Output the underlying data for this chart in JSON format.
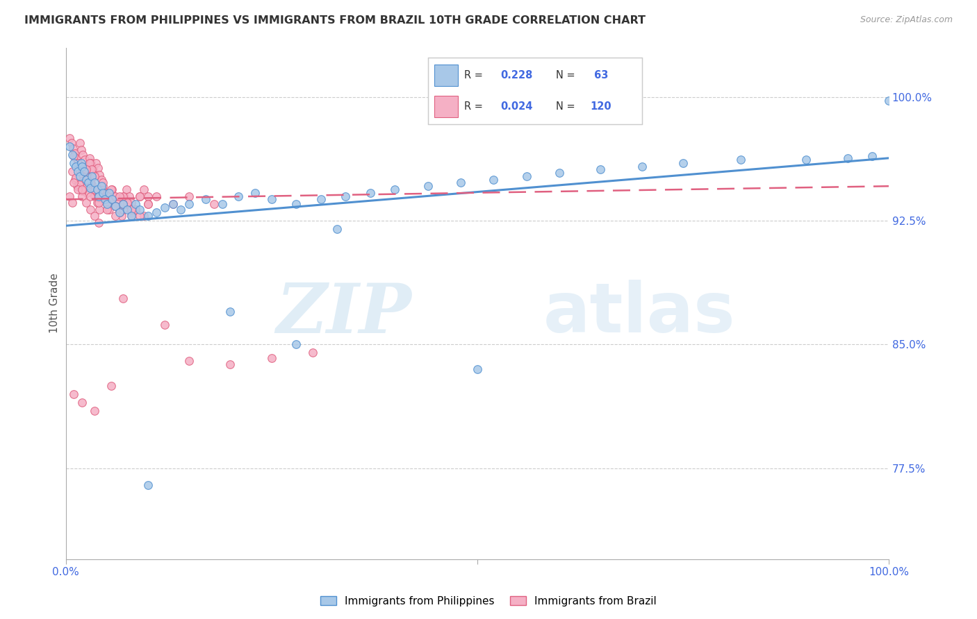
{
  "title": "IMMIGRANTS FROM PHILIPPINES VS IMMIGRANTS FROM BRAZIL 10TH GRADE CORRELATION CHART",
  "source": "Source: ZipAtlas.com",
  "ylabel": "10th Grade",
  "yticks": [
    0.775,
    0.85,
    0.925,
    1.0
  ],
  "ytick_labels": [
    "77.5%",
    "85.0%",
    "92.5%",
    "100.0%"
  ],
  "xlim": [
    0.0,
    1.0
  ],
  "ylim": [
    0.72,
    1.03
  ],
  "color_blue": "#a8c8e8",
  "color_pink": "#f5b0c5",
  "line_blue": "#5090d0",
  "line_pink": "#e06080",
  "watermark_zip": "ZIP",
  "watermark_atlas": "atlas",
  "title_color": "#333333",
  "axis_color": "#4169e1",
  "phil_line_y0": 0.922,
  "phil_line_y1": 0.963,
  "brazil_line_y0": 0.938,
  "brazil_line_y1": 0.946,
  "philippines_x": [
    0.005,
    0.008,
    0.01,
    0.012,
    0.015,
    0.017,
    0.019,
    0.02,
    0.022,
    0.025,
    0.027,
    0.03,
    0.032,
    0.035,
    0.038,
    0.04,
    0.043,
    0.045,
    0.048,
    0.05,
    0.053,
    0.056,
    0.06,
    0.065,
    0.07,
    0.075,
    0.08,
    0.085,
    0.09,
    0.1,
    0.11,
    0.12,
    0.13,
    0.14,
    0.15,
    0.17,
    0.19,
    0.21,
    0.23,
    0.25,
    0.28,
    0.31,
    0.34,
    0.37,
    0.4,
    0.44,
    0.48,
    0.52,
    0.56,
    0.6,
    0.65,
    0.7,
    0.75,
    0.82,
    0.9,
    0.95,
    0.98,
    1.0,
    0.28,
    0.5,
    0.33,
    0.2,
    0.1
  ],
  "philippines_y": [
    0.97,
    0.965,
    0.96,
    0.958,
    0.955,
    0.952,
    0.96,
    0.958,
    0.955,
    0.95,
    0.948,
    0.945,
    0.952,
    0.948,
    0.944,
    0.94,
    0.946,
    0.942,
    0.938,
    0.935,
    0.942,
    0.938,
    0.934,
    0.93,
    0.935,
    0.932,
    0.928,
    0.935,
    0.932,
    0.928,
    0.93,
    0.933,
    0.935,
    0.932,
    0.935,
    0.938,
    0.935,
    0.94,
    0.942,
    0.938,
    0.935,
    0.938,
    0.94,
    0.942,
    0.944,
    0.946,
    0.948,
    0.95,
    0.952,
    0.954,
    0.956,
    0.958,
    0.96,
    0.962,
    0.962,
    0.963,
    0.964,
    0.998,
    0.85,
    0.835,
    0.92,
    0.87,
    0.765
  ],
  "brazil_x": [
    0.005,
    0.007,
    0.009,
    0.011,
    0.013,
    0.015,
    0.017,
    0.019,
    0.021,
    0.023,
    0.025,
    0.027,
    0.029,
    0.031,
    0.033,
    0.035,
    0.037,
    0.039,
    0.041,
    0.043,
    0.005,
    0.008,
    0.011,
    0.014,
    0.017,
    0.02,
    0.023,
    0.026,
    0.029,
    0.032,
    0.035,
    0.038,
    0.041,
    0.044,
    0.047,
    0.05,
    0.053,
    0.056,
    0.059,
    0.062,
    0.065,
    0.068,
    0.071,
    0.074,
    0.077,
    0.08,
    0.085,
    0.09,
    0.095,
    0.1,
    0.008,
    0.012,
    0.016,
    0.02,
    0.024,
    0.028,
    0.032,
    0.036,
    0.04,
    0.045,
    0.01,
    0.015,
    0.02,
    0.025,
    0.03,
    0.035,
    0.04,
    0.045,
    0.05,
    0.055,
    0.06,
    0.065,
    0.07,
    0.075,
    0.08,
    0.01,
    0.015,
    0.02,
    0.025,
    0.03,
    0.035,
    0.04,
    0.05,
    0.06,
    0.07,
    0.08,
    0.09,
    0.1,
    0.015,
    0.025,
    0.035,
    0.045,
    0.055,
    0.065,
    0.075,
    0.085,
    0.095,
    0.02,
    0.03,
    0.04,
    0.05,
    0.06,
    0.07,
    0.08,
    0.09,
    0.1,
    0.11,
    0.13,
    0.15,
    0.18,
    0.07,
    0.12,
    0.15,
    0.2,
    0.25,
    0.3,
    0.01,
    0.02,
    0.035,
    0.055
  ],
  "brazil_y": [
    0.975,
    0.972,
    0.969,
    0.966,
    0.963,
    0.96,
    0.972,
    0.968,
    0.965,
    0.962,
    0.958,
    0.955,
    0.963,
    0.96,
    0.956,
    0.953,
    0.96,
    0.957,
    0.953,
    0.95,
    0.94,
    0.936,
    0.95,
    0.946,
    0.953,
    0.949,
    0.945,
    0.942,
    0.96,
    0.956,
    0.94,
    0.936,
    0.932,
    0.944,
    0.94,
    0.936,
    0.932,
    0.944,
    0.94,
    0.936,
    0.932,
    0.928,
    0.94,
    0.944,
    0.94,
    0.936,
    0.932,
    0.94,
    0.944,
    0.94,
    0.955,
    0.951,
    0.947,
    0.943,
    0.955,
    0.951,
    0.947,
    0.943,
    0.939,
    0.944,
    0.964,
    0.96,
    0.956,
    0.952,
    0.948,
    0.944,
    0.94,
    0.946,
    0.942,
    0.938,
    0.934,
    0.93,
    0.94,
    0.935,
    0.93,
    0.948,
    0.944,
    0.94,
    0.936,
    0.932,
    0.928,
    0.924,
    0.935,
    0.94,
    0.932,
    0.928,
    0.94,
    0.935,
    0.96,
    0.956,
    0.952,
    0.948,
    0.944,
    0.94,
    0.936,
    0.932,
    0.928,
    0.944,
    0.94,
    0.936,
    0.932,
    0.928,
    0.935,
    0.932,
    0.928,
    0.935,
    0.94,
    0.935,
    0.94,
    0.935,
    0.878,
    0.862,
    0.84,
    0.838,
    0.842,
    0.845,
    0.82,
    0.815,
    0.81,
    0.825
  ]
}
